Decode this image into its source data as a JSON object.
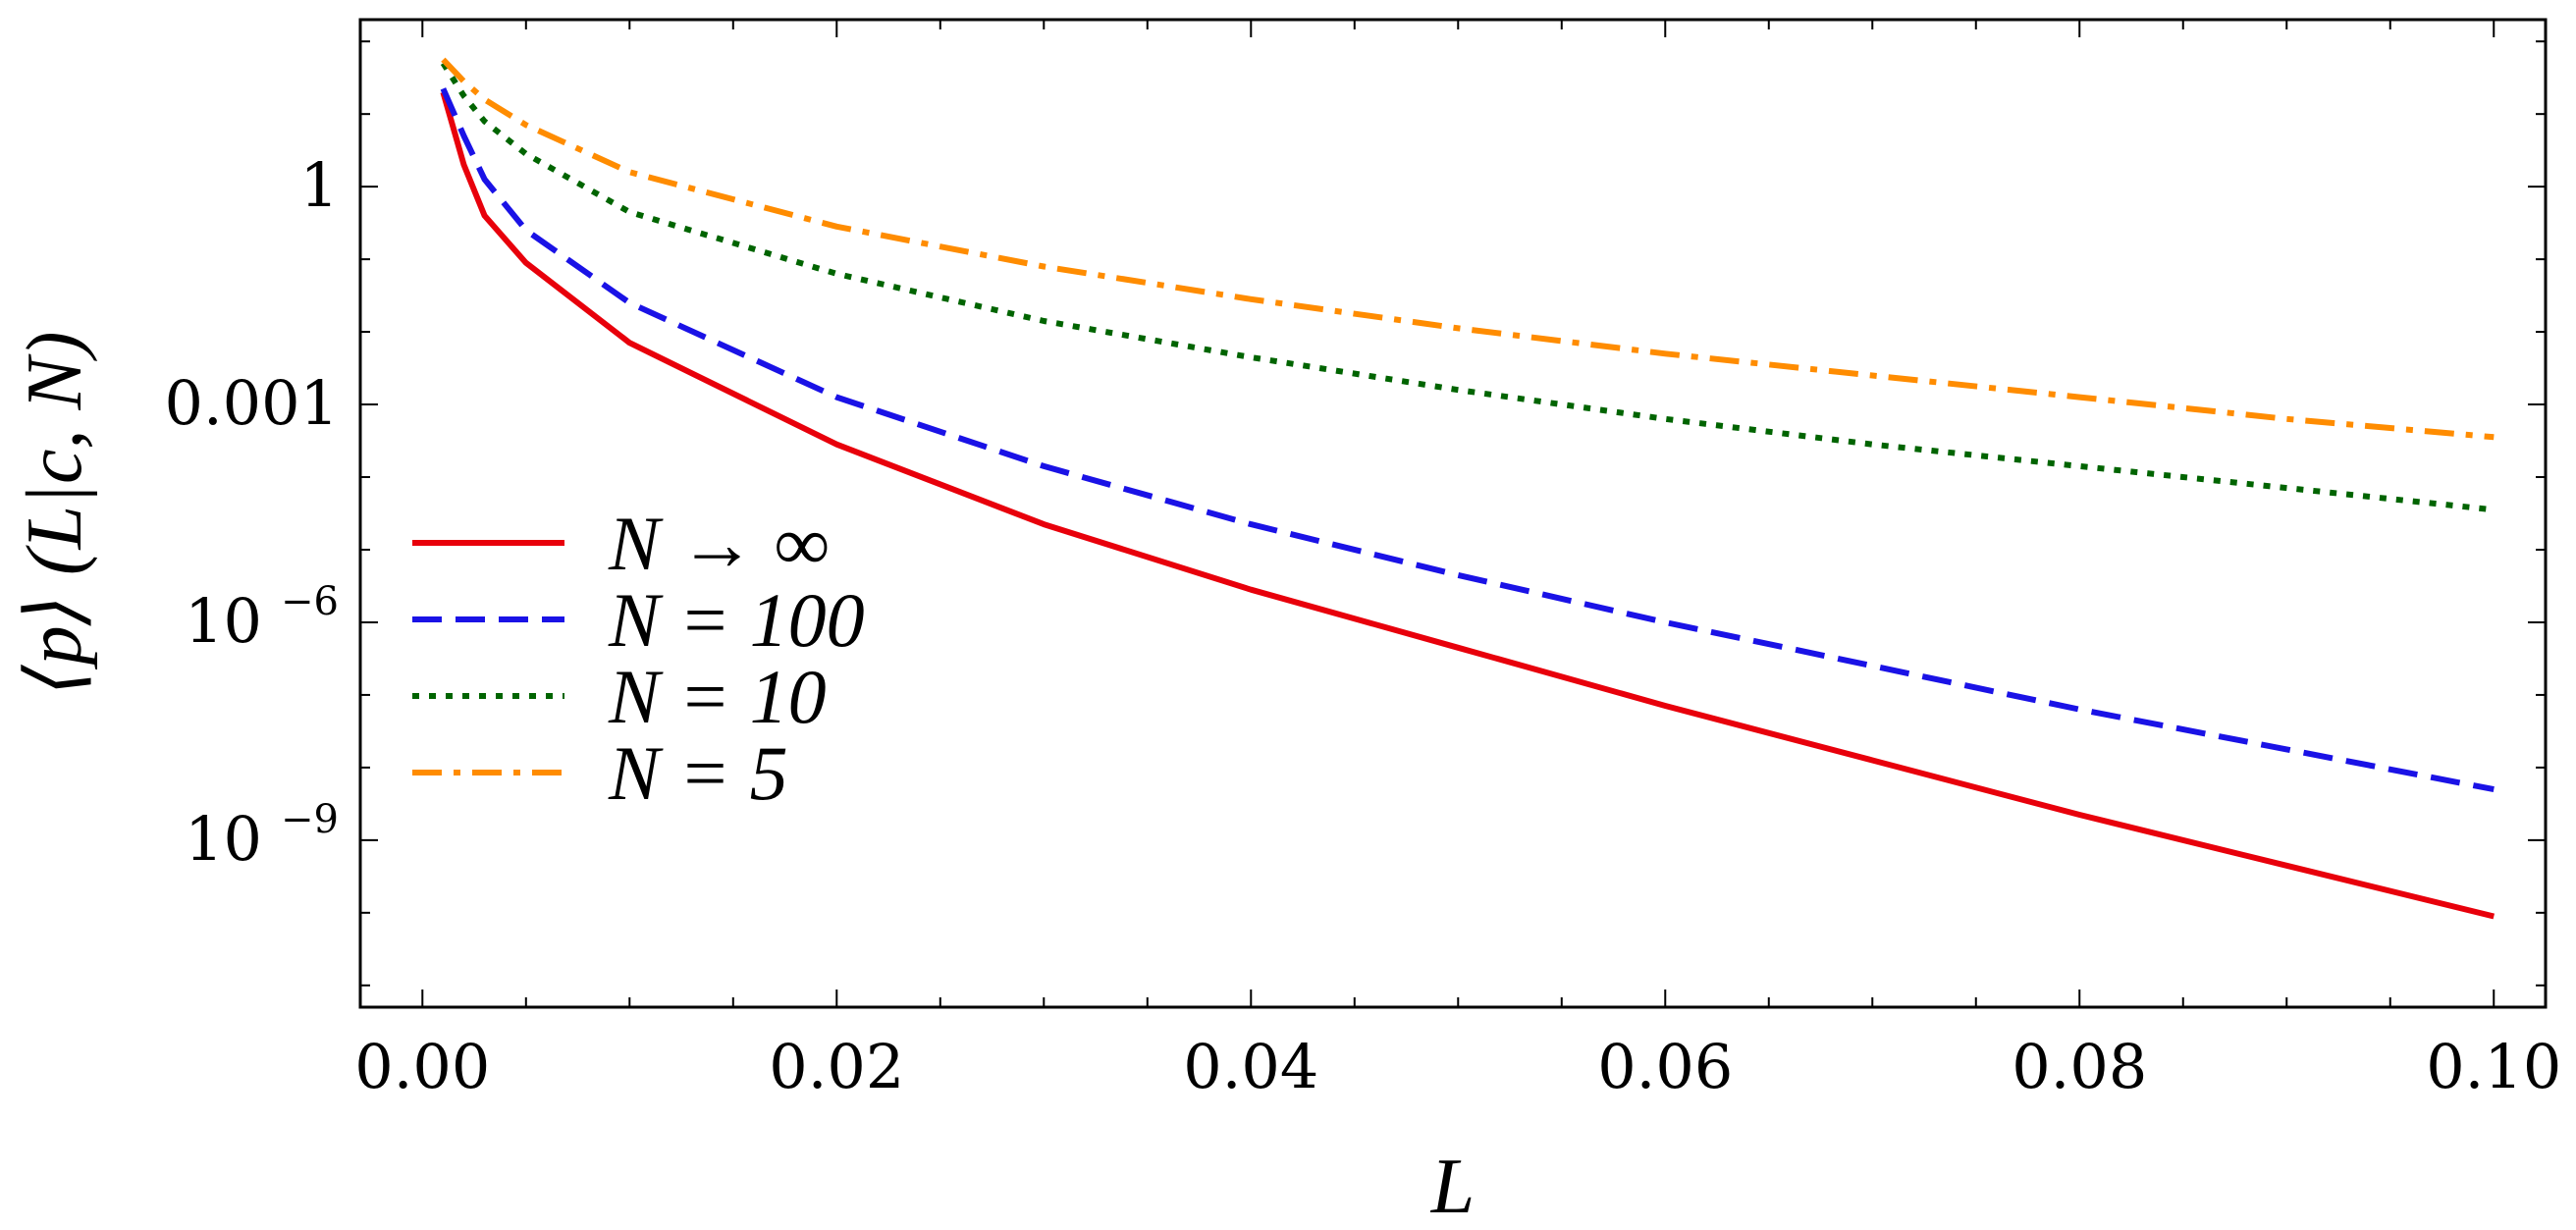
{
  "chart_data": {
    "type": "line",
    "title": "",
    "xlabel": "L",
    "ylabel": "⟨p⟩ (L|c, N)",
    "y_scale": "log",
    "xlim": [
      -0.003,
      0.1025
    ],
    "ylim_log10": [
      -11.3,
      2.3
    ],
    "grid": false,
    "legend_position": "left",
    "x_ticks": [
      {
        "value": 0.0,
        "label": "0.00"
      },
      {
        "value": 0.02,
        "label": "0.02"
      },
      {
        "value": 0.04,
        "label": "0.04"
      },
      {
        "value": 0.06,
        "label": "0.06"
      },
      {
        "value": 0.08,
        "label": "0.08"
      },
      {
        "value": 0.1,
        "label": "0.10"
      }
    ],
    "y_ticks": [
      {
        "exp": 0,
        "label": "1",
        "base": "",
        "sup": ""
      },
      {
        "exp": -3,
        "label": "0.001",
        "base": "",
        "sup": ""
      },
      {
        "exp": -6,
        "label": "",
        "base": "10",
        "sup": "−6"
      },
      {
        "exp": -9,
        "label": "",
        "base": "10",
        "sup": "−9"
      }
    ],
    "x": [
      0.001,
      0.002,
      0.003,
      0.005,
      0.01,
      0.02,
      0.03,
      0.04,
      0.05,
      0.06,
      0.07,
      0.08,
      0.09,
      0.1
    ],
    "series": [
      {
        "name": "N → ∞",
        "color": "#e8000b",
        "dash": "solid",
        "log10_values": [
          1.3,
          0.3,
          -0.4,
          -1.05,
          -2.15,
          -3.55,
          -4.65,
          -5.55,
          -6.35,
          -7.15,
          -7.9,
          -8.65,
          -9.35,
          -10.05
        ]
      },
      {
        "name": "N = 100",
        "color": "#1a12e6",
        "dash": "dashed",
        "log10_values": [
          1.35,
          0.7,
          0.1,
          -0.6,
          -1.6,
          -2.9,
          -3.85,
          -4.65,
          -5.35,
          -6.0,
          -6.6,
          -7.2,
          -7.75,
          -8.3
        ]
      },
      {
        "name": "N = 10",
        "color": "#006400",
        "dash": "dotted",
        "log10_values": [
          1.7,
          1.25,
          0.9,
          0.45,
          -0.35,
          -1.2,
          -1.85,
          -2.35,
          -2.8,
          -3.2,
          -3.55,
          -3.85,
          -4.15,
          -4.45
        ]
      },
      {
        "name": "N = 5",
        "color": "#ff8c00",
        "dash": "dashdot",
        "log10_values": [
          1.75,
          1.45,
          1.2,
          0.85,
          0.2,
          -0.55,
          -1.1,
          -1.55,
          -1.95,
          -2.3,
          -2.6,
          -2.9,
          -3.2,
          -3.45
        ]
      }
    ]
  }
}
